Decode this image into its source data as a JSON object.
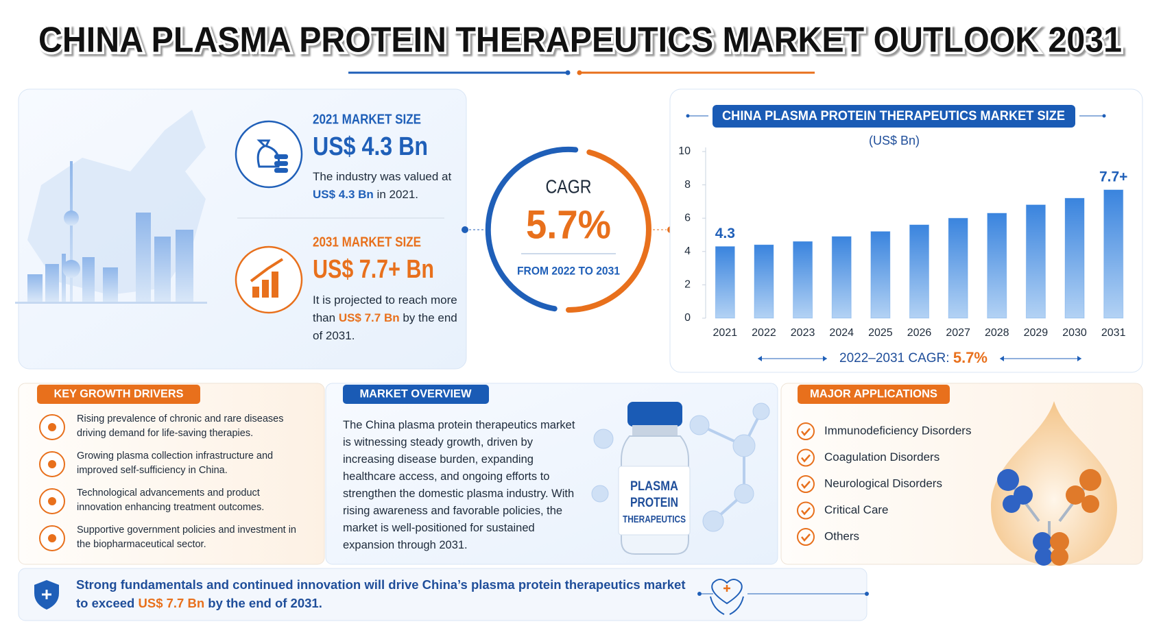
{
  "title": "CHINA PLASMA PROTEIN THERAPEUTICS MARKET OUTLOOK 2031",
  "market_size": [
    {
      "label": "2021 MARKET SIZE",
      "value": "US$ 4.3 Bn",
      "desc": [
        "The industry was valued at ",
        "US$ 4.3 Bn",
        " in 2021."
      ]
    },
    {
      "label": "2031 MARKET SIZE",
      "value": "US$ 7.7+ Bn",
      "desc": [
        "It is projected to reach more than ",
        "US$ 7.7 Bn",
        " by the end of 2031."
      ]
    }
  ],
  "cagr": {
    "label": "CAGR",
    "value": "5.7%",
    "period": "FROM 2022 TO 2031"
  },
  "chart_data": {
    "type": "bar",
    "title": "CHINA PLASMA PROTEIN THERAPEUTICS MARKET SIZE",
    "subtitle": "(US$ Bn)",
    "categories": [
      "2021",
      "2022",
      "2023",
      "2024",
      "2025",
      "2026",
      "2027",
      "2028",
      "2029",
      "2030",
      "2031"
    ],
    "values": [
      4.3,
      4.4,
      4.6,
      4.9,
      5.2,
      5.6,
      6.0,
      6.3,
      6.8,
      7.2,
      7.7
    ],
    "value_labels": [
      "4.3",
      null,
      null,
      null,
      null,
      null,
      null,
      null,
      null,
      null,
      "7.7+"
    ],
    "color": "#3f8ae2",
    "ylim": [
      0,
      10
    ],
    "yticks": [
      0,
      2,
      4,
      6,
      8,
      10
    ],
    "grid": false,
    "footer": [
      "2022–2031 CAGR: ",
      "5.7%"
    ]
  },
  "growth_drivers": {
    "title": "KEY GROWTH DRIVERS",
    "items": [
      "Rising prevalence of chronic and rare diseases driving demand for life-saving therapies.",
      "Growing plasma collection infrastructure and improved self-sufficiency in China.",
      "Technological advancements and product innovation enhancing treatment outcomes.",
      "Supportive government policies and investment in the biopharmaceutical sector."
    ]
  },
  "overview": {
    "title": "MARKET OVERVIEW",
    "text": "The China plasma protein therapeutics market is witnessing steady growth, driven by increasing disease burden, expanding healthcare access, and ongoing efforts to strengthen the domestic plasma industry. With rising awareness and favorable policies, the market is well-positioned for sustained expansion through 2031.",
    "vial_label": [
      "PLASMA",
      "PROTEIN",
      "THERAPEUTICS"
    ]
  },
  "applications": {
    "title": "MAJOR APPLICATIONS",
    "items": [
      "Immunodeficiency Disorders",
      "Coagulation Disorders",
      "Neurological Disorders",
      "Critical Care",
      "Others"
    ]
  },
  "conclusion": [
    "Strong fundamentals and continued innovation will drive China’s plasma protein therapeutics market to exceed ",
    "US$ 7.7 Bn",
    " by the end of 2031."
  ]
}
